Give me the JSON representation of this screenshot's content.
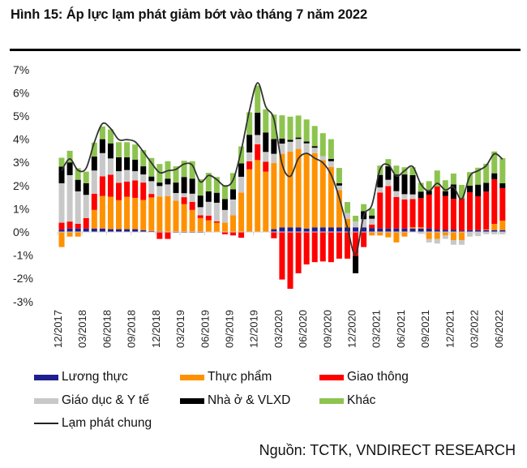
{
  "title": "Hình 15: Áp lực lạm phát giảm bớt vào tháng 7 năm 2022",
  "source": "Nguồn: TCTK, VNDIRECT RESEARCH",
  "chart_data": {
    "type": "bar",
    "stacked": true,
    "title": "Hình 15: Áp lực lạm phát giảm bớt vào tháng 7 năm 2022",
    "ylim": [
      -3,
      7
    ],
    "yticks": [
      "7%",
      "6%",
      "5%",
      "4%",
      "3%",
      "2%",
      "1%",
      "0%",
      "-1%",
      "-2%",
      "-3%"
    ],
    "ytick_values": [
      7,
      6,
      5,
      4,
      3,
      2,
      1,
      0,
      -1,
      -2,
      -3
    ],
    "xtick_labels": [
      "12/2017",
      "03/2018",
      "06/2018",
      "09/2018",
      "12/2018",
      "03/2019",
      "06/2019",
      "09/2019",
      "12/2019",
      "03/2020",
      "06/2020",
      "09/2020",
      "12/2020",
      "03/2021",
      "06/2021",
      "09/2021",
      "12/2021",
      "03/2022",
      "06/2022"
    ],
    "categories": [
      "01/2018",
      "02/2018",
      "03/2018",
      "04/2018",
      "05/2018",
      "06/2018",
      "07/2018",
      "08/2018",
      "09/2018",
      "10/2018",
      "11/2018",
      "12/2018",
      "01/2019",
      "02/2019",
      "03/2019",
      "04/2019",
      "05/2019",
      "06/2019",
      "07/2019",
      "08/2019",
      "09/2019",
      "10/2019",
      "11/2019",
      "12/2019",
      "01/2020",
      "02/2020",
      "03/2020",
      "04/2020",
      "05/2020",
      "06/2020",
      "07/2020",
      "08/2020",
      "09/2020",
      "10/2020",
      "11/2020",
      "12/2020",
      "01/2021",
      "02/2021",
      "03/2021",
      "04/2021",
      "05/2021",
      "06/2021",
      "07/2021",
      "08/2021",
      "09/2021",
      "10/2021",
      "11/2021",
      "12/2021",
      "01/2022",
      "02/2022",
      "03/2022",
      "04/2022",
      "05/2022",
      "06/2022",
      "07/2022"
    ],
    "grid": false,
    "legend_placement": "bottom",
    "series": [
      {
        "name": "Lương thực",
        "color": "#1f1f8f",
        "values": [
          0.1,
          0.15,
          0.15,
          0.15,
          0.15,
          0.15,
          0.12,
          0.12,
          0.12,
          0.12,
          0.08,
          0.04,
          0.03,
          0,
          -0.03,
          -0.03,
          -0.03,
          -0.03,
          0,
          0,
          0,
          0,
          0,
          0,
          0,
          0,
          0.12,
          0.2,
          0.2,
          0.2,
          0.15,
          0.2,
          0.2,
          0.2,
          0.2,
          0.2,
          0.2,
          0.2,
          0.17,
          0.15,
          0.15,
          0.15,
          0.15,
          0.15,
          0.15,
          0.15,
          0.1,
          0.1,
          0.1,
          0.05,
          0.08,
          0.08,
          0.08,
          0.08,
          0.08
        ]
      },
      {
        "name": "Thực phẩm",
        "color": "#ff9100",
        "values": [
          -0.65,
          -0.2,
          -0.2,
          0,
          0.8,
          1.4,
          1.4,
          1.25,
          1.4,
          1.35,
          1.3,
          1.45,
          1.5,
          1.55,
          1.35,
          1.2,
          0.95,
          0.6,
          0.5,
          0.4,
          0.4,
          0.72,
          1.7,
          2.7,
          3.1,
          2.6,
          2.85,
          3.17,
          3.26,
          3.38,
          3.23,
          3.2,
          2.9,
          2.6,
          1.6,
          0.37,
          0,
          0,
          -0.15,
          -0.15,
          -0.23,
          -0.45,
          -0.2,
          0.05,
          0.05,
          -0.3,
          -0.3,
          -0.15,
          -0.35,
          -0.35,
          0,
          0,
          0.03,
          0.27,
          0.41
        ]
      },
      {
        "name": "Giao thông",
        "color": "#ff0000",
        "values": [
          0.3,
          0.3,
          0.2,
          0.45,
          0.7,
          0.85,
          0.95,
          0.75,
          0.65,
          0.75,
          0.75,
          0.15,
          -0.3,
          -0.3,
          0,
          0.3,
          0.35,
          0.12,
          0.2,
          0.06,
          -0.1,
          -0.15,
          -0.25,
          0.35,
          0.68,
          0.43,
          -0.27,
          -2.05,
          -2.45,
          -1.78,
          -1.4,
          -1.3,
          -1.27,
          -1.3,
          -1.15,
          -1.15,
          -1.03,
          -0.65,
          0.15,
          1.55,
          1.83,
          1.36,
          1.25,
          1.22,
          1.26,
          1.46,
          1.86,
          1.45,
          1.33,
          1.4,
          1.63,
          1.46,
          1.63,
          1.92,
          1.4
        ]
      },
      {
        "name": "Giáo dục & Y tế",
        "color": "#c8c8c8",
        "values": [
          1.7,
          2.0,
          1.4,
          1.0,
          1.0,
          1.0,
          0.7,
          0.5,
          0.5,
          0.4,
          0.35,
          0.55,
          0.45,
          0.5,
          0.33,
          0.17,
          0.35,
          0.35,
          0.6,
          0.8,
          0.55,
          0.68,
          0.68,
          0.38,
          0.4,
          0.42,
          0.4,
          0.44,
          0.43,
          0.43,
          0.44,
          0.23,
          0.17,
          0.25,
          0.2,
          0.25,
          0.25,
          0.35,
          0.25,
          0.22,
          0.27,
          0.25,
          0.23,
          0.2,
          -0.08,
          -0.15,
          -0.2,
          -0.15,
          -0.2,
          -0.2,
          -0.2,
          -0.18,
          -0.1,
          -0.1,
          -0.1
        ]
      },
      {
        "name": "Nhà ở & VLXD",
        "color": "#000000",
        "values": [
          0.72,
          0.55,
          0.5,
          0.5,
          0.6,
          0.6,
          0.65,
          0.6,
          0.55,
          0.5,
          0.35,
          0.2,
          0.15,
          0.25,
          0.45,
          0.7,
          0.65,
          0.5,
          0.45,
          0.43,
          0.47,
          0.44,
          0.58,
          0.76,
          0.96,
          0.84,
          0.64,
          0.22,
          0.08,
          0.06,
          0.08,
          0.07,
          0,
          0.1,
          0.1,
          0,
          -0.75,
          0.35,
          0.14,
          0.54,
          0.58,
          0.72,
          0.85,
          0.83,
          0.28,
          0.17,
          0,
          0.21,
          0.62,
          0,
          0.29,
          0.5,
          0.38,
          0.26,
          0.21
        ]
      },
      {
        "name": "Khác",
        "color": "#8dc450",
        "values": [
          0.38,
          0.5,
          0.5,
          0.5,
          0.6,
          0.55,
          0.6,
          0.65,
          0.65,
          0.65,
          0.7,
          0.8,
          0.8,
          0.75,
          0.7,
          0.7,
          0.75,
          0.7,
          0.8,
          0.68,
          0.6,
          0.7,
          0.73,
          0.97,
          1.17,
          1.0,
          1.05,
          1.0,
          1.0,
          0.95,
          0.95,
          0.87,
          0.99,
          0.85,
          0.66,
          0.47,
          0.25,
          0.3,
          0.3,
          0.4,
          0.31,
          0.38,
          0.31,
          0.34,
          0.38,
          0.41,
          0.69,
          0.47,
          0.47,
          0.58,
          0.58,
          0.73,
          0.82,
          0.94,
          1.08
        ]
      }
    ],
    "line": {
      "name": "Lạm phát chung",
      "type": "line",
      "color": "#333333",
      "values": [
        2.65,
        3.15,
        2.66,
        2.75,
        3.86,
        4.67,
        4.46,
        3.98,
        3.98,
        3.89,
        3.46,
        2.98,
        2.56,
        2.64,
        2.7,
        2.93,
        2.88,
        2.16,
        2.44,
        2.26,
        1.98,
        2.24,
        3.52,
        5.23,
        6.43,
        5.4,
        4.87,
        2.93,
        2.4,
        3.17,
        3.39,
        3.18,
        2.98,
        2.47,
        1.48,
        0.19,
        -0.97,
        0.7,
        1.16,
        2.7,
        2.9,
        2.41,
        2.64,
        2.82,
        2.06,
        1.77,
        2.1,
        1.81,
        1.94,
        1.42,
        2.41,
        2.64,
        2.86,
        3.37,
        3.14
      ]
    }
  }
}
